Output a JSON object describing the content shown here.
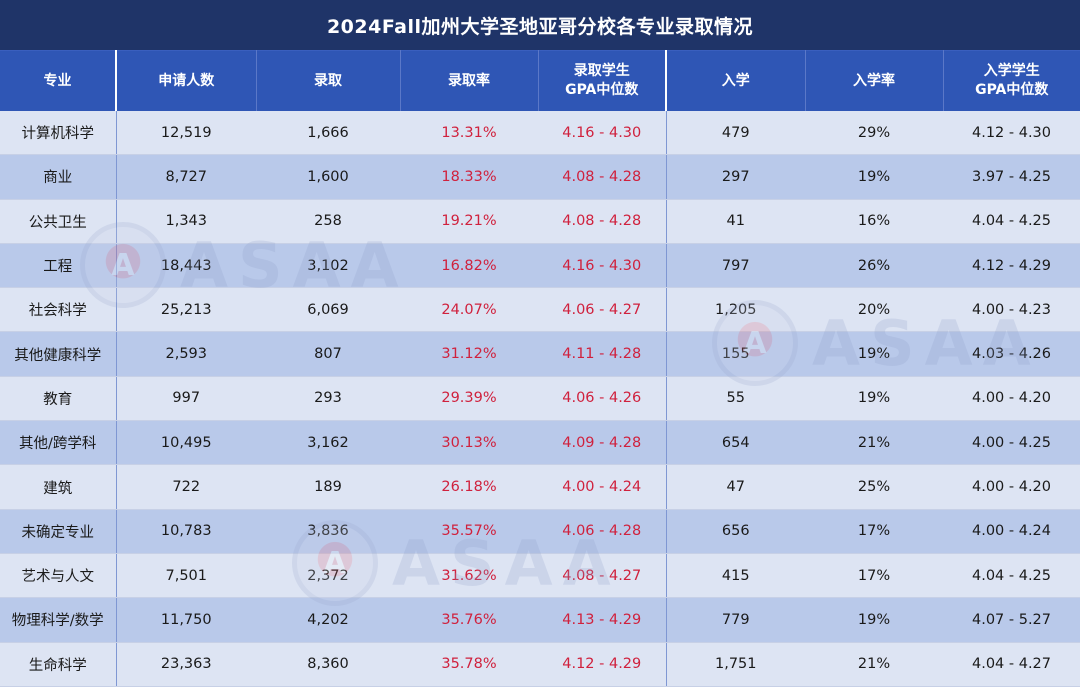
{
  "title": "2024Fall加州大学圣地亚哥分校各专业录取情况",
  "headers": {
    "major": "专业",
    "applicants": "申请人数",
    "admitted": "录取",
    "admit_rate": "录取率",
    "admit_gpa_line1": "录取学生",
    "admit_gpa_line2": "GPA中位数",
    "enrolled": "入学",
    "enroll_rate": "入学率",
    "enroll_gpa_line1": "入学学生",
    "enroll_gpa_line2": "GPA中位数"
  },
  "rows": [
    {
      "major": "计算机科学",
      "applicants": "12,519",
      "admitted": "1,666",
      "admit_rate": "13.31%",
      "admit_gpa": "4.16 - 4.30",
      "enrolled": "479",
      "enroll_rate": "29%",
      "enroll_gpa": "4.12 - 4.30"
    },
    {
      "major": "商业",
      "applicants": "8,727",
      "admitted": "1,600",
      "admit_rate": "18.33%",
      "admit_gpa": "4.08 - 4.28",
      "enrolled": "297",
      "enroll_rate": "19%",
      "enroll_gpa": "3.97 - 4.25"
    },
    {
      "major": "公共卫生",
      "applicants": "1,343",
      "admitted": "258",
      "admit_rate": "19.21%",
      "admit_gpa": "4.08 - 4.28",
      "enrolled": "41",
      "enroll_rate": "16%",
      "enroll_gpa": "4.04 - 4.25"
    },
    {
      "major": "工程",
      "applicants": "18,443",
      "admitted": "3,102",
      "admit_rate": "16.82%",
      "admit_gpa": "4.16 - 4.30",
      "enrolled": "797",
      "enroll_rate": "26%",
      "enroll_gpa": "4.12 - 4.29"
    },
    {
      "major": "社会科学",
      "applicants": "25,213",
      "admitted": "6,069",
      "admit_rate": "24.07%",
      "admit_gpa": "4.06 - 4.27",
      "enrolled": "1,205",
      "enroll_rate": "20%",
      "enroll_gpa": "4.00 - 4.23"
    },
    {
      "major": "其他健康科学",
      "applicants": "2,593",
      "admitted": "807",
      "admit_rate": "31.12%",
      "admit_gpa": "4.11 - 4.28",
      "enrolled": "155",
      "enroll_rate": "19%",
      "enroll_gpa": "4.03 - 4.26"
    },
    {
      "major": "教育",
      "applicants": "997",
      "admitted": "293",
      "admit_rate": "29.39%",
      "admit_gpa": "4.06 - 4.26",
      "enrolled": "55",
      "enroll_rate": "19%",
      "enroll_gpa": "4.00 - 4.20"
    },
    {
      "major": "其他/跨学科",
      "applicants": "10,495",
      "admitted": "3,162",
      "admit_rate": "30.13%",
      "admit_gpa": "4.09 - 4.28",
      "enrolled": "654",
      "enroll_rate": "21%",
      "enroll_gpa": "4.00 - 4.25"
    },
    {
      "major": "建筑",
      "applicants": "722",
      "admitted": "189",
      "admit_rate": "26.18%",
      "admit_gpa": "4.00 - 4.24",
      "enrolled": "47",
      "enroll_rate": "25%",
      "enroll_gpa": "4.00 - 4.20"
    },
    {
      "major": "未确定专业",
      "applicants": "10,783",
      "admitted": "3,836",
      "admit_rate": "35.57%",
      "admit_gpa": "4.06 - 4.28",
      "enrolled": "656",
      "enroll_rate": "17%",
      "enroll_gpa": "4.00 - 4.24"
    },
    {
      "major": "艺术与人文",
      "applicants": "7,501",
      "admitted": "2,372",
      "admit_rate": "31.62%",
      "admit_gpa": "4.08 - 4.27",
      "enrolled": "415",
      "enroll_rate": "17%",
      "enroll_gpa": "4.04 - 4.25"
    },
    {
      "major": "物理科学/数学",
      "applicants": "11,750",
      "admitted": "4,202",
      "admit_rate": "35.76%",
      "admit_gpa": "4.13 - 4.29",
      "enrolled": "779",
      "enroll_rate": "19%",
      "enroll_gpa": "4.07 - 5.27"
    },
    {
      "major": "生命科学",
      "applicants": "23,363",
      "admitted": "8,360",
      "admit_rate": "35.78%",
      "admit_gpa": "4.12 - 4.29",
      "enrolled": "1,751",
      "enroll_rate": "21%",
      "enroll_gpa": "4.04 - 4.27"
    }
  ],
  "watermark": {
    "logo_text": "ASAA",
    "seal_letter": "A"
  },
  "colors": {
    "title_bg": "#1f3468",
    "header_bg": "#2f56b5",
    "row_light": "#dde4f3",
    "row_dark": "#b9c9ea",
    "rate_text": "#d0213d"
  }
}
